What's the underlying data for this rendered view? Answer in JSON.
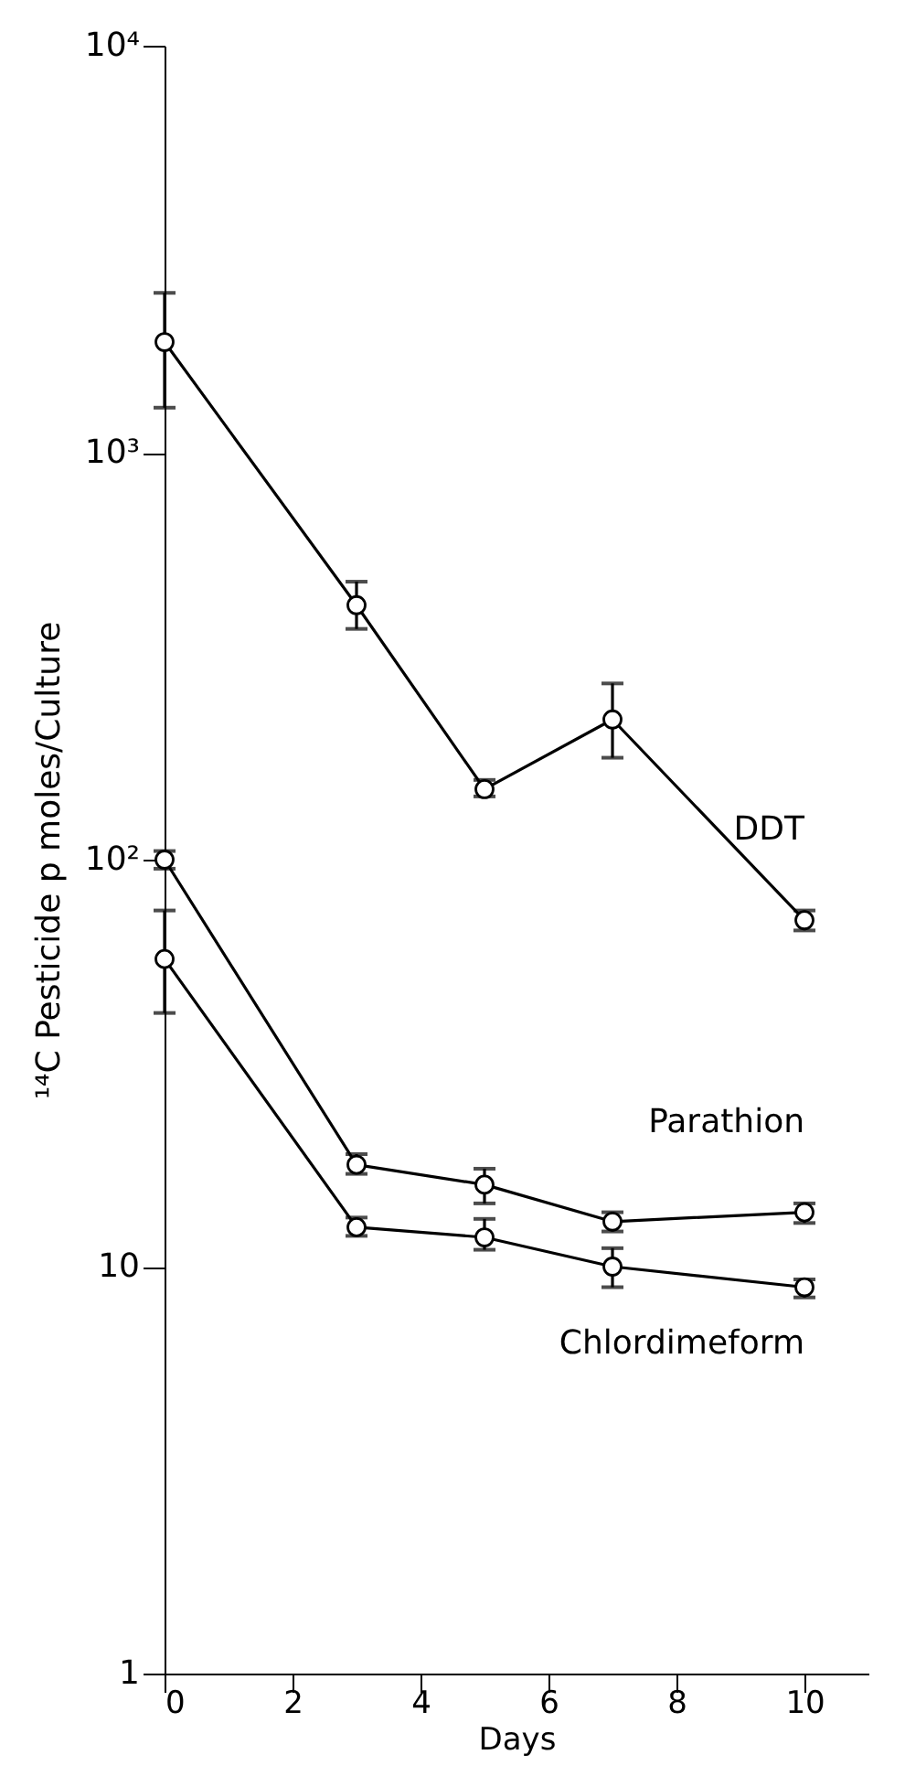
{
  "chart_data": {
    "type": "line",
    "xlabel": "Days",
    "ylabel": "¹⁴C Pesticide p moles/Culture",
    "x": [
      0,
      3,
      5,
      7,
      10
    ],
    "series": [
      {
        "name": "DDT",
        "color": "#000000",
        "values": [
          1870,
          422,
          149,
          221,
          71
        ],
        "errors": [
          [
            1290,
            2470
          ],
          [
            369,
            482
          ],
          [
            143,
            157
          ],
          [
            178,
            271
          ],
          [
            67,
            75
          ]
        ]
      },
      {
        "name": "Parathion",
        "color": "#000000",
        "values": [
          100,
          17.8,
          15.9,
          12.9,
          13.6
        ],
        "errors": [
          [
            95,
            105
          ],
          [
            16.9,
            18.9
          ],
          [
            14.3,
            17.4
          ],
          [
            12.2,
            13.6
          ],
          [
            12.8,
            14.3
          ]
        ]
      },
      {
        "name": "Chlordimeform",
        "color": "#000000",
        "values": [
          57,
          12.5,
          11.8,
          10,
          8.9
        ],
        "errors": [
          [
            42,
            75
          ],
          [
            11.9,
            13.2
          ],
          [
            11,
            13.1
          ],
          [
            8.9,
            11.1
          ],
          [
            8.4,
            9.3
          ]
        ]
      }
    ],
    "log": "y",
    "xlim": [
      0,
      11
    ],
    "ylim": [
      1,
      10000
    ],
    "xticks": [
      0,
      2,
      4,
      6,
      8,
      10
    ],
    "yticks": [
      1,
      10,
      {
        "value": 100,
        "label": "10²"
      },
      {
        "value": 1000,
        "label": "10³"
      },
      {
        "value": 10000,
        "label": "10⁴"
      }
    ],
    "grid": false,
    "legend": false,
    "marker": "circle",
    "line_style": "solid"
  }
}
